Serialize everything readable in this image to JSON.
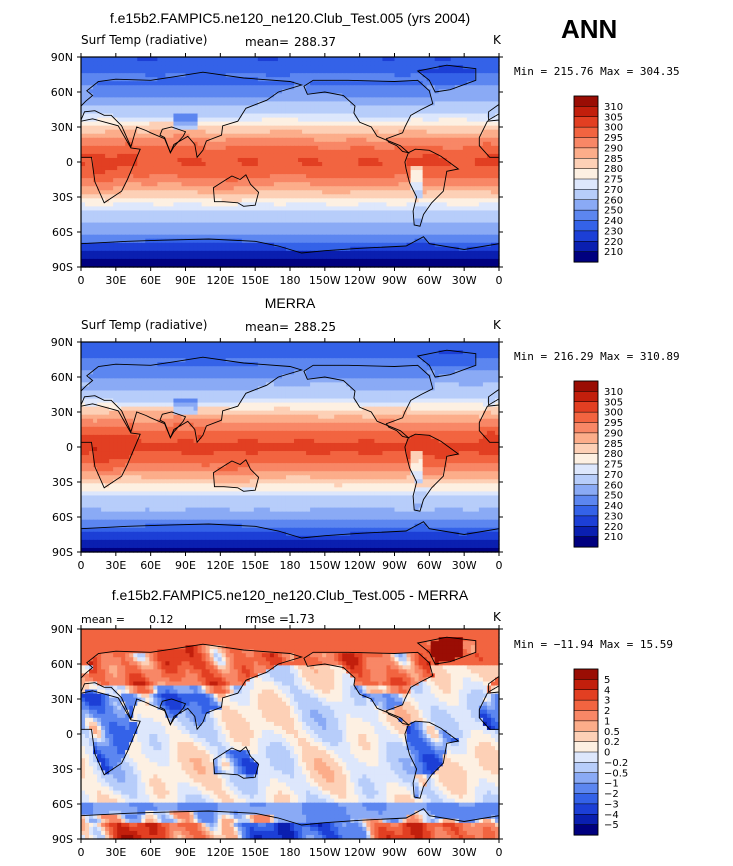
{
  "season": "ANN",
  "colors": {
    "abs_levels": [
      "#00007f",
      "#0a1fb0",
      "#1c3fd6",
      "#3462e8",
      "#5c86f0",
      "#8aaaf5",
      "#b7cdfa",
      "#dde7fc",
      "#fdf0e2",
      "#fdd0b6",
      "#fcad8a",
      "#f88766",
      "#f26440",
      "#e23f22",
      "#c21f0c",
      "#9a0d04"
    ],
    "diff_levels": [
      "#00007f",
      "#0a1fb0",
      "#1c3fd6",
      "#3462e8",
      "#5c86f0",
      "#8aaaf5",
      "#b7cdfa",
      "#dde7fc",
      "#fdf0e2",
      "#fdd0b6",
      "#fcad8a",
      "#f88766",
      "#f26440",
      "#e23f22",
      "#c21f0c",
      "#9a0d04"
    ],
    "coastline": "#000000"
  },
  "chart_data": [
    {
      "type": "heatmap",
      "title": "f.e15b2.FAMPIC5.ne120_ne120.Club_Test.005 (yrs 2004)",
      "left_label": "Surf Temp (radiative)",
      "center_label": "mean=",
      "center_value": "288.37",
      "units": "K",
      "stats": "Min = 215.76 Max = 304.35",
      "xlim": [
        0,
        360
      ],
      "ylim": [
        -90,
        90
      ],
      "x_ticks": [
        "0",
        "30E",
        "60E",
        "90E",
        "120E",
        "150E",
        "180",
        "150W",
        "120W",
        "90W",
        "60W",
        "30W",
        "0"
      ],
      "y_ticks": [
        "90N",
        "60N",
        "30N",
        "0",
        "30S",
        "60S",
        "90S"
      ],
      "colorbar_labels": [
        "310",
        "305",
        "300",
        "295",
        "290",
        "285",
        "280",
        "275",
        "270",
        "260",
        "250",
        "240",
        "230",
        "220",
        "210"
      ],
      "field": {
        "kind": "abs",
        "equator": 300,
        "amp": 58,
        "shape": 1.6,
        "land_warm": 1.5,
        "polar_cold": 8
      }
    },
    {
      "type": "heatmap",
      "title": "MERRA",
      "left_label": "Surf Temp (radiative)",
      "center_label": "mean=",
      "center_value": "288.25",
      "units": "K",
      "stats": "Min = 216.29 Max = 310.89",
      "xlim": [
        0,
        360
      ],
      "ylim": [
        -90,
        90
      ],
      "x_ticks": [
        "0",
        "30E",
        "60E",
        "90E",
        "120E",
        "150E",
        "180",
        "150W",
        "120W",
        "90W",
        "60W",
        "30W",
        "0"
      ],
      "y_ticks": [
        "90N",
        "60N",
        "30N",
        "0",
        "30S",
        "60S",
        "90S"
      ],
      "colorbar_labels": [
        "310",
        "305",
        "300",
        "295",
        "290",
        "285",
        "280",
        "275",
        "270",
        "260",
        "250",
        "240",
        "230",
        "220",
        "210"
      ],
      "field": {
        "kind": "abs",
        "equator": 301,
        "amp": 58,
        "shape": 1.6,
        "land_warm": 3.0,
        "polar_cold": 6
      }
    },
    {
      "type": "heatmap",
      "title": "f.e15b2.FAMPIC5.ne120_ne120.Club_Test.005 - MERRA",
      "left_label": "mean =",
      "left_value": "0.12",
      "center_label": "rmse =",
      "center_value": "1.73",
      "units": "K",
      "stats": "Min = −11.94 Max =  15.59",
      "xlim": [
        0,
        360
      ],
      "ylim": [
        -90,
        90
      ],
      "x_ticks": [
        "0",
        "30E",
        "60E",
        "90E",
        "120E",
        "150E",
        "180",
        "150W",
        "120W",
        "90W",
        "60W",
        "30W",
        "0"
      ],
      "y_ticks": [
        "90N",
        "60N",
        "30N",
        "0",
        "30S",
        "60S",
        "90S"
      ],
      "colorbar_labels": [
        "5",
        "4",
        "3",
        "2",
        "1",
        "0.5",
        "0.2",
        "0",
        "−0.2",
        "−0.5",
        "−1",
        "−2",
        "−3",
        "−4",
        "−5"
      ],
      "field": {
        "kind": "diff"
      }
    }
  ]
}
